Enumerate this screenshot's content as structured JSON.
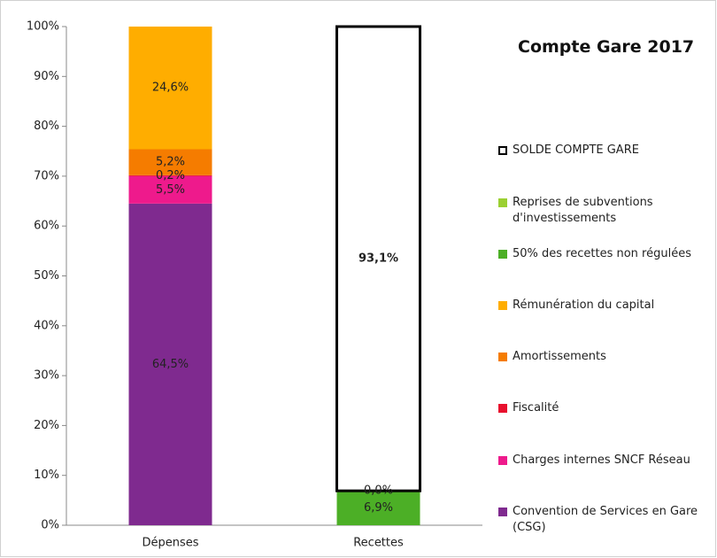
{
  "chart_data": {
    "type": "stacked_bar",
    "title": "Compte Gare 2017",
    "categories": [
      "Dépenses",
      "Recettes"
    ],
    "ylim": [
      0,
      100
    ],
    "yticks": [
      {
        "value": 0,
        "label": "0%"
      },
      {
        "value": 10,
        "label": "10%"
      },
      {
        "value": 20,
        "label": "20%"
      },
      {
        "value": 30,
        "label": "30%"
      },
      {
        "value": 40,
        "label": "40%"
      },
      {
        "value": 50,
        "label": "50%"
      },
      {
        "value": 60,
        "label": "60%"
      },
      {
        "value": 70,
        "label": "70%"
      },
      {
        "value": 80,
        "label": "80%"
      },
      {
        "value": 90,
        "label": "90%"
      },
      {
        "value": 100,
        "label": "100%"
      }
    ],
    "series": [
      {
        "name": "Convention de Services en Gare (CSG)",
        "color": "#7f2a8f",
        "values": [
          64.5,
          null
        ],
        "value_labels": [
          "64,5%",
          null
        ]
      },
      {
        "name": "Charges internes SNCF Réseau",
        "color": "#ee1a8c",
        "values": [
          5.5,
          null
        ],
        "value_labels": [
          "5,5%",
          null
        ]
      },
      {
        "name": "Fiscalité",
        "color": "#e8102e",
        "values": [
          0.2,
          null
        ],
        "value_labels": [
          "0,2%",
          null
        ]
      },
      {
        "name": "Amortissements",
        "color": "#f57c00",
        "values": [
          5.2,
          null
        ],
        "value_labels": [
          "5,2%",
          null
        ]
      },
      {
        "name": "Rémunération du capital",
        "color": "#ffad00",
        "values": [
          24.6,
          null
        ],
        "value_labels": [
          "24,6%",
          null
        ]
      },
      {
        "name": "50% des recettes non régulées",
        "color": "#4caf26",
        "values": [
          null,
          6.9
        ],
        "value_labels": [
          null,
          "6,9%"
        ]
      },
      {
        "name": "Reprises de subventions d'investissements",
        "color": "#9bd032",
        "values": [
          null,
          0
        ],
        "value_labels": [
          null,
          "0,0%"
        ]
      },
      {
        "name": "SOLDE COMPTE GARE",
        "color": "#ffffff",
        "border": "#000000",
        "values": [
          null,
          93.1
        ],
        "value_labels": [
          null,
          "93,1%"
        ]
      }
    ]
  }
}
